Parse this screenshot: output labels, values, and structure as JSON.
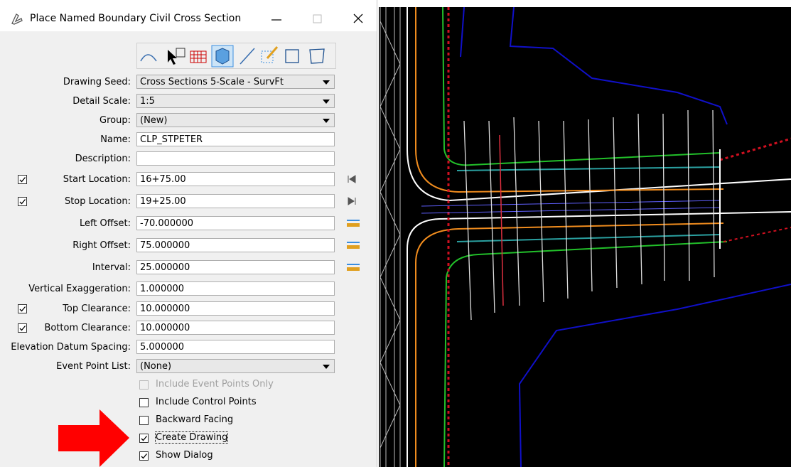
{
  "window": {
    "title": "Place Named Boundary Civil Cross Section"
  },
  "fields": [
    {
      "label": "Drawing Seed:",
      "value": "Cross Sections 5-Scale - SurvFt",
      "dropdown": true
    },
    {
      "label": "Detail Scale:",
      "value": "1:5",
      "dropdown": true
    },
    {
      "label": "Group:",
      "value": "(New)",
      "dropdown": true
    },
    {
      "label": "Name:",
      "value": "CLP_STPETER"
    },
    {
      "label": "Description:",
      "value": ""
    },
    {
      "label": "Start Location:",
      "value": "16+75.00",
      "checked": true
    },
    {
      "label": "Stop Location:",
      "value": "19+25.00",
      "checked": true
    },
    {
      "label": "Left Offset:",
      "value": "-70.000000"
    },
    {
      "label": "Right Offset:",
      "value": "75.000000"
    },
    {
      "label": "Interval:",
      "value": "25.000000"
    },
    {
      "label": "Vertical Exaggeration:",
      "value": "1.000000"
    },
    {
      "label": "Top Clearance:",
      "value": "10.000000",
      "checked": true
    },
    {
      "label": "Bottom Clearance:",
      "value": "10.000000",
      "checked": true
    },
    {
      "label": "Elevation Datum Spacing:",
      "value": "5.000000"
    },
    {
      "label": "Event Point List:",
      "value": "(None)",
      "dropdown": true
    }
  ],
  "options": [
    {
      "label": "Include Event Points Only",
      "checked": false,
      "enabled": false
    },
    {
      "label": "Include Control Points",
      "checked": false,
      "enabled": true
    },
    {
      "label": "Backward Facing",
      "checked": false,
      "enabled": true
    },
    {
      "label": "Create Drawing",
      "checked": true,
      "enabled": true
    },
    {
      "label": "Show Dialog",
      "checked": true,
      "enabled": true
    }
  ]
}
